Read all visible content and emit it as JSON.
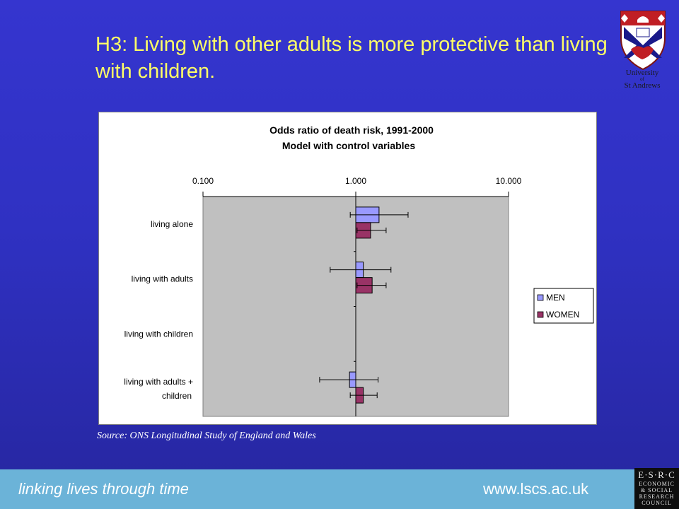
{
  "slide": {
    "title": "H3: Living with other adults is more protective than living with children.",
    "source": "Source: ONS Longitudinal Study of England and Wales"
  },
  "logo": {
    "name_line1": "University",
    "name_of": "of",
    "name_line2": "St Andrews",
    "icon": "university-crest-icon"
  },
  "footer": {
    "tagline": "linking lives through time",
    "url": "www.lscs.ac.uk",
    "esrc_logo": {
      "acronym": "E·S·R·C",
      "lines": [
        "ECONOMIC",
        "& SOCIAL",
        "RESEARCH",
        "COUNCIL"
      ]
    }
  },
  "colors": {
    "background": "#3030c4",
    "title": "#ffff66",
    "plot_area": "#c0c0c0",
    "men": "#9999ff",
    "women": "#993366",
    "footer": "#6bb3d8"
  },
  "chart_data": {
    "type": "bar",
    "orientation": "horizontal",
    "title": "Odds ratio of death risk, 1991-2000",
    "subtitle": "Model with control variables",
    "x_scale": "log",
    "xlim": [
      0.1,
      10
    ],
    "x_ticks": [
      0.1,
      1,
      10
    ],
    "x_tick_labels": [
      "0.100",
      "1.000",
      "10.000"
    ],
    "x_axis_position": "top",
    "bar_origin": 1.0,
    "categories": [
      "living alone",
      "living with adults",
      "living with children",
      "living with adults + children"
    ],
    "series": [
      {
        "name": "MEN",
        "color": "#9999ff",
        "values": [
          1.42,
          1.12,
          null,
          0.91
        ],
        "ci_low": [
          0.92,
          0.68,
          null,
          0.58
        ],
        "ci_high": [
          2.2,
          1.7,
          null,
          1.4
        ]
      },
      {
        "name": "WOMEN",
        "color": "#993366",
        "values": [
          1.25,
          1.28,
          null,
          1.12
        ],
        "ci_low": [
          1.02,
          1.02,
          null,
          0.92
        ],
        "ci_high": [
          1.58,
          1.58,
          null,
          1.38
        ]
      }
    ],
    "legend_position": "right",
    "grid": false
  }
}
